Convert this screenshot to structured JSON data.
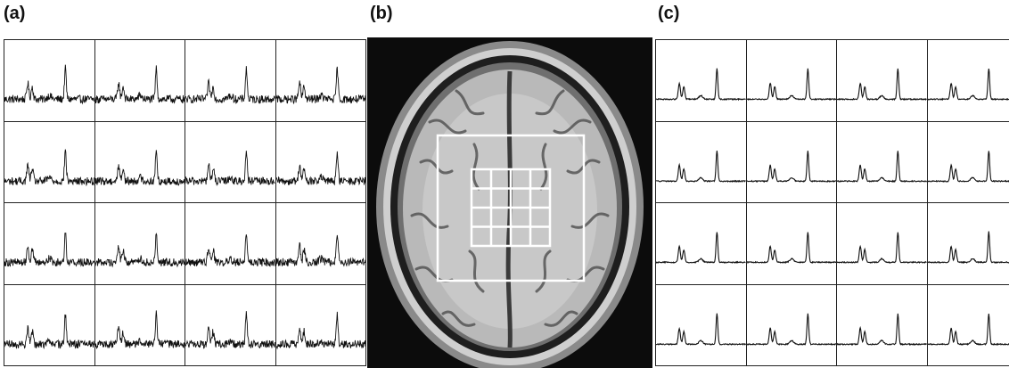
{
  "figure": {
    "panel_a": {
      "label": "(a)",
      "rows": 4,
      "cols": 4,
      "trace_style": "noisy"
    },
    "panel_b": {
      "label": "(b)",
      "voxel_grid": {
        "rows": 4,
        "cols": 4
      }
    },
    "panel_c": {
      "label": "(c)",
      "rows": 4,
      "cols": 4,
      "trace_style": "smooth"
    }
  },
  "colors": {
    "trace": "#111111",
    "grid_line": "#222222",
    "roi_box": "#ffffff",
    "scan_background": "#0c0c0c"
  }
}
